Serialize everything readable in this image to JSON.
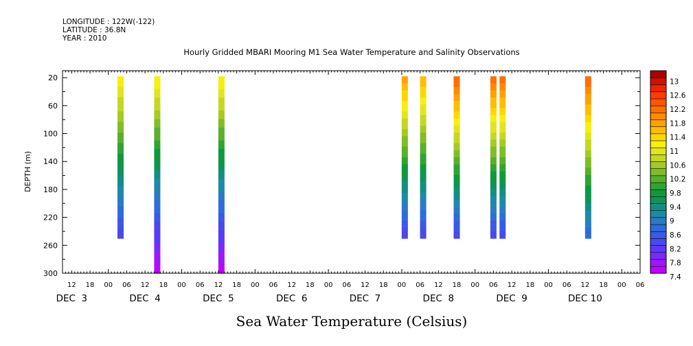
{
  "header": {
    "lines": [
      "LONGITUDE : 122W(-122)",
      "LATITUDE : 36.8N",
      "YEAR : 2010"
    ]
  },
  "chart_data": {
    "type": "heatmap",
    "title": "Hourly Gridded MBARI Mooring M1 Sea Water Temperature and Salinity Observations",
    "xlabel": "Sea Water Temperature (Celsius)",
    "ylabel": "DEPTH (m)",
    "x_range_hours": [
      0,
      189
    ],
    "hour_ticks": [
      {
        "h": 3,
        "label": "12"
      },
      {
        "h": 9,
        "label": "18"
      },
      {
        "h": 15,
        "label": "00"
      },
      {
        "h": 21,
        "label": "06"
      },
      {
        "h": 27,
        "label": "12"
      },
      {
        "h": 33,
        "label": "18"
      },
      {
        "h": 39,
        "label": "00"
      },
      {
        "h": 45,
        "label": "06"
      },
      {
        "h": 51,
        "label": "12"
      },
      {
        "h": 57,
        "label": "18"
      },
      {
        "h": 63,
        "label": "00"
      },
      {
        "h": 69,
        "label": "06"
      },
      {
        "h": 75,
        "label": "12"
      },
      {
        "h": 81,
        "label": "18"
      },
      {
        "h": 87,
        "label": "00"
      },
      {
        "h": 93,
        "label": "06"
      },
      {
        "h": 99,
        "label": "12"
      },
      {
        "h": 105,
        "label": "18"
      },
      {
        "h": 111,
        "label": "00"
      },
      {
        "h": 117,
        "label": "06"
      },
      {
        "h": 123,
        "label": "12"
      },
      {
        "h": 129,
        "label": "18"
      },
      {
        "h": 135,
        "label": "00"
      },
      {
        "h": 141,
        "label": "06"
      },
      {
        "h": 147,
        "label": "12"
      },
      {
        "h": 153,
        "label": "18"
      },
      {
        "h": 159,
        "label": "00"
      },
      {
        "h": 165,
        "label": "06"
      },
      {
        "h": 171,
        "label": "12"
      },
      {
        "h": 177,
        "label": "18"
      },
      {
        "h": 183,
        "label": "00"
      },
      {
        "h": 189,
        "label": "06"
      }
    ],
    "day_labels": [
      {
        "h": 3,
        "label": "DEC  3"
      },
      {
        "h": 27,
        "label": "DEC  4"
      },
      {
        "h": 51,
        "label": "DEC  5"
      },
      {
        "h": 75,
        "label": "DEC  6"
      },
      {
        "h": 99,
        "label": "DEC  7"
      },
      {
        "h": 123,
        "label": "DEC  8"
      },
      {
        "h": 147,
        "label": "DEC  9"
      },
      {
        "h": 171,
        "label": "DEC 10"
      }
    ],
    "y_range": [
      300,
      10
    ],
    "y_ticks": [
      20,
      60,
      100,
      140,
      180,
      220,
      260,
      300
    ],
    "colorbar": {
      "levels": [
        7.4,
        7.6,
        7.8,
        8.0,
        8.2,
        8.4,
        8.6,
        8.8,
        9.0,
        9.2,
        9.4,
        9.6,
        9.8,
        10.0,
        10.2,
        10.4,
        10.6,
        10.8,
        11.0,
        11.2,
        11.4,
        11.6,
        11.8,
        12.0,
        12.2,
        12.4,
        12.6,
        12.8,
        13.0,
        13.2
      ],
      "colors": [
        "#c400ff",
        "#9d18ff",
        "#7a2aff",
        "#5c38ff",
        "#4a48f0",
        "#3a5ae6",
        "#2d6cdc",
        "#2a7bc4",
        "#1d8aa8",
        "#138f82",
        "#0d9458",
        "#0e9a3c",
        "#30a433",
        "#58b02d",
        "#80bd28",
        "#a4cb25",
        "#c4d822",
        "#e2e51c",
        "#f6f00f",
        "#fbd800",
        "#ffbe00",
        "#ffa200",
        "#ff8a00",
        "#ff6e00",
        "#ff5400",
        "#ff3c00",
        "#f02400",
        "#d21000",
        "#a80000"
      ],
      "tick_labels": [
        "13",
        "12.6",
        "12.2",
        "11.8",
        "11.4",
        "11",
        "10.6",
        "10.2",
        "9.8",
        "9.4",
        "9",
        "8.6",
        "8.2",
        "7.8",
        "7.4"
      ]
    },
    "profiles": [
      {
        "hour": 19,
        "depth_top": 20,
        "depth_bottom": 250,
        "temp_top": 11.2,
        "temp_bottom": 8.2
      },
      {
        "hour": 31,
        "depth_top": 20,
        "depth_bottom": 300,
        "temp_top": 11.2,
        "temp_bottom": 7.4
      },
      {
        "hour": 52,
        "depth_top": 20,
        "depth_bottom": 300,
        "temp_top": 11.2,
        "temp_bottom": 7.4
      },
      {
        "hour": 112,
        "depth_top": 20,
        "depth_bottom": 250,
        "temp_top": 11.7,
        "temp_bottom": 8.2
      },
      {
        "hour": 118,
        "depth_top": 20,
        "depth_bottom": 250,
        "temp_top": 11.6,
        "temp_bottom": 8.2
      },
      {
        "hour": 129,
        "depth_top": 20,
        "depth_bottom": 250,
        "temp_top": 12.2,
        "temp_bottom": 8.2
      },
      {
        "hour": 141,
        "depth_top": 20,
        "depth_bottom": 250,
        "temp_top": 12.1,
        "temp_bottom": 8.2
      },
      {
        "hour": 144,
        "depth_top": 20,
        "depth_bottom": 250,
        "temp_top": 12.1,
        "temp_bottom": 8.2
      },
      {
        "hour": 172,
        "depth_top": 20,
        "depth_bottom": 250,
        "temp_top": 12.2,
        "temp_bottom": 8.6
      }
    ]
  }
}
